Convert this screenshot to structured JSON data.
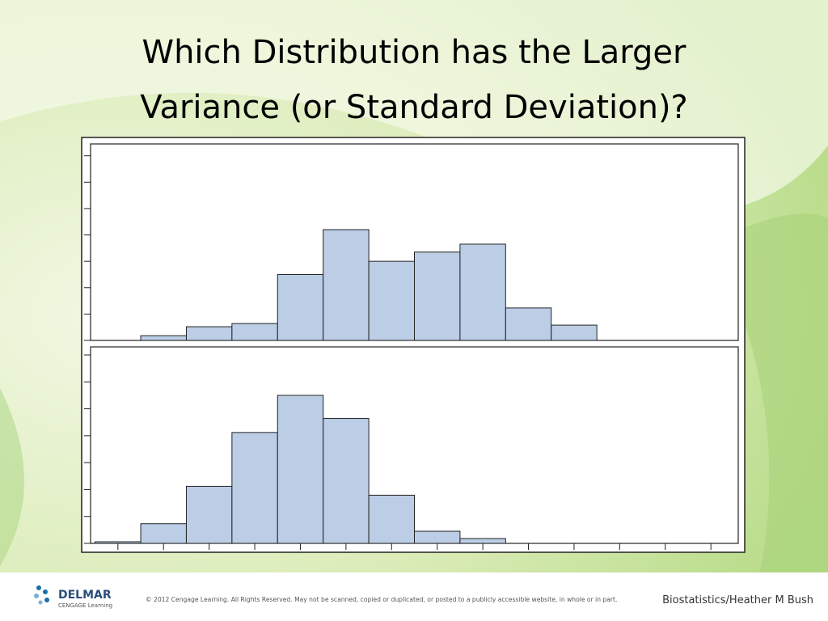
{
  "slide": {
    "title_lines": [
      "Which Distribution has the Larger",
      "Variance (or Standard Deviation)?"
    ],
    "logo": {
      "name": "DELMAR",
      "sub": "CENGAGE Learning"
    },
    "copyright": "© 2012 Cengage Learning. All Rights Reserved. May not be scanned, copied or duplicated, or posted to a publicly accessible website, in whole or in part.",
    "credit": "Biostatistics/Heather M Bush"
  },
  "chart_data": [
    {
      "type": "histogram",
      "color": "#bccde6",
      "bins": [
        1,
        2,
        3,
        4,
        5,
        6,
        7,
        8,
        9,
        10,
        11
      ],
      "values": [
        0.18,
        0.52,
        0.64,
        2.5,
        4.2,
        3.0,
        3.35,
        3.65,
        1.23,
        0.58
      ],
      "xlim": [
        -0.1,
        14.1
      ],
      "ylim": [
        0,
        7.45
      ],
      "yticks": [
        0,
        1,
        2,
        3,
        4,
        5,
        6,
        7
      ]
    },
    {
      "type": "histogram",
      "color": "#bccde6",
      "bins": [
        0,
        1,
        2,
        3,
        4,
        5,
        6,
        7,
        8,
        9
      ],
      "values": [
        0.06,
        0.73,
        2.12,
        4.12,
        5.5,
        4.64,
        1.79,
        0.45,
        0.18
      ],
      "xlim": [
        -0.1,
        14.1
      ],
      "ylim": [
        0,
        7.3
      ],
      "yticks": [
        0,
        1,
        2,
        3,
        4,
        5,
        6,
        7
      ],
      "xticks": [
        0.5,
        1.5,
        2.5,
        3.5,
        4.5,
        5.5,
        6.5,
        7.5,
        8.5,
        9.5,
        10.5,
        11.5,
        12.5,
        13.5
      ]
    }
  ]
}
